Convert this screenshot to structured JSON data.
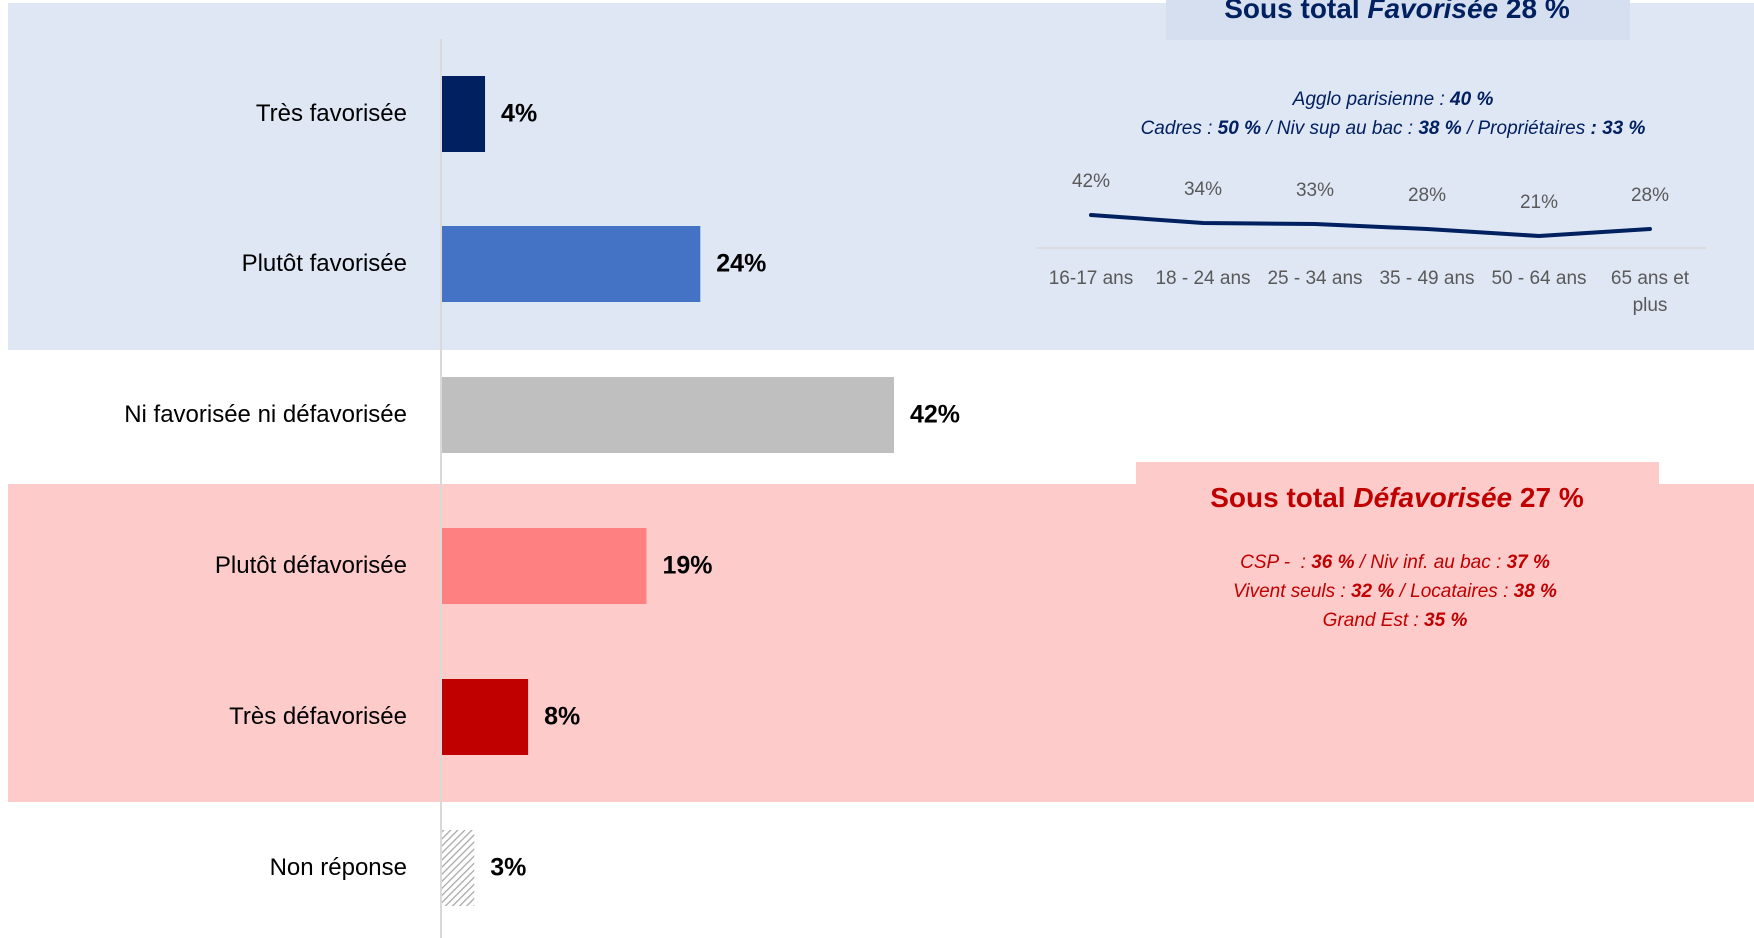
{
  "chart_data": [
    {
      "type": "hbar",
      "categories": [
        "Très favorisée",
        "Plutôt favorisée",
        "Ni favorisée ni défavorisée",
        "Plutôt défavorisée",
        "Très défavorisée",
        "Non réponse"
      ],
      "values": [
        4,
        24,
        42,
        19,
        8,
        3
      ],
      "value_labels": [
        "4%",
        "24%",
        "42%",
        "19%",
        "8%",
        "3%"
      ],
      "colors": [
        "#002060",
        "#4472c4",
        "#bfbfbf",
        "#ff8080",
        "#c00000",
        "#a6a6a6"
      ],
      "patterns": [
        "solid",
        "solid",
        "solid",
        "solid",
        "solid",
        "hatched"
      ]
    },
    {
      "type": "line",
      "categories": [
        "16-17 ans",
        "18 - 24 ans",
        "25 - 34 ans",
        "35 - 49 ans",
        "50 - 64 ans",
        "65 ans et plus"
      ],
      "values": [
        42,
        34,
        33,
        28,
        21,
        28
      ],
      "value_labels": [
        "42%",
        "34%",
        "33%",
        "28%",
        "21%",
        "28%"
      ],
      "color": "#002060"
    }
  ],
  "annotations": {
    "favorable": {
      "title": [
        "Sous total ",
        "Favorisée",
        " 28 %"
      ],
      "lines": [
        [
          "Agglo parisienne : ",
          "40 %"
        ],
        [
          "Cadres : ",
          "50 %",
          " / Niv sup au bac : ",
          "38 %",
          " / Propriétaires ",
          ": 33 %"
        ]
      ]
    },
    "unfavorable": {
      "title": [
        "Sous total ",
        "Défavorisée",
        " 27 %"
      ],
      "lines": [
        [
          "CSP -  : ",
          "36 %",
          " / Niv inf. au bac : ",
          "37 %"
        ],
        [
          "Vivent seuls : ",
          "32 %",
          " / Locataires : ",
          "38 %"
        ],
        [
          "Grand Est : ",
          "35 %"
        ]
      ]
    }
  }
}
